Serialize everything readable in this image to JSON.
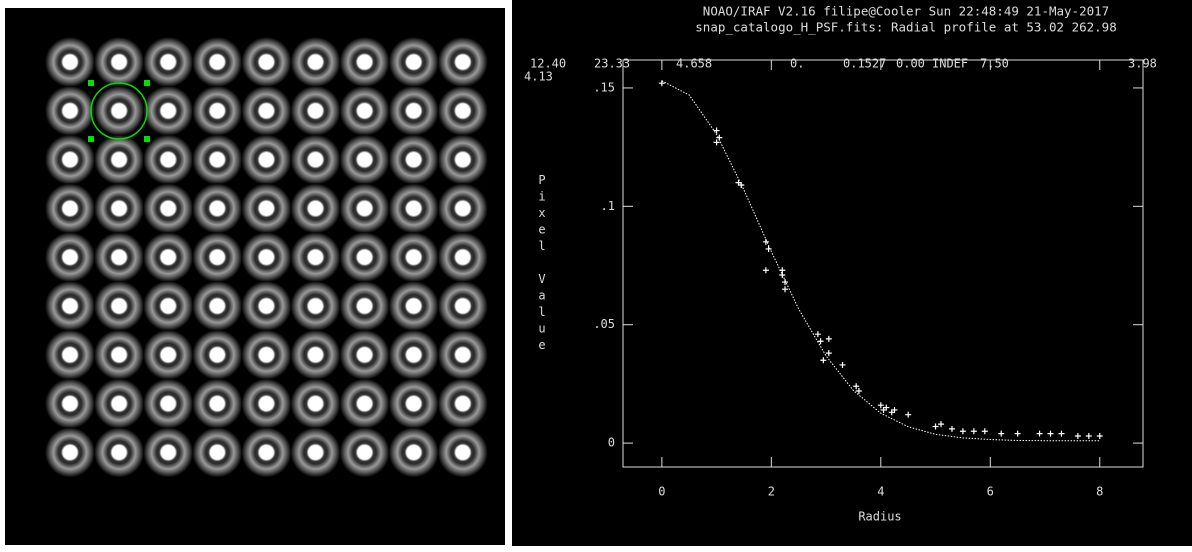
{
  "header": {
    "line1": "NOAO/IRAF V2.16 filipe@Cooler Sun 22:48:49 21-May-2017",
    "line2": "snap_catalogo_H_PSF.fits: Radial profile at 53.02 262.98"
  },
  "stats": {
    "row1": [
      "12.40",
      "23.33",
      "4.658",
      "0.",
      "0.1527",
      "0.00",
      "INDEF",
      "7.50",
      "3.98"
    ],
    "row2": [
      "4.13"
    ]
  },
  "chart_data": {
    "type": "scatter",
    "x_label": "Radius",
    "y_label": "Pixel Value",
    "xlim": [
      -0.71,
      8.79
    ],
    "ylim": [
      -0.0101,
      0.1618
    ],
    "xticks": [
      0,
      2,
      4,
      6,
      8
    ],
    "yticks": [
      0,
      {
        "value": 0.05,
        "label": ".05"
      },
      {
        "value": 0.1,
        "label": ".1"
      },
      {
        "value": 0.15,
        "label": ".15"
      }
    ],
    "series": [
      {
        "type": "scatter",
        "color": "#ffffff",
        "x": [
          0,
          1,
          1,
          1.05,
          1.4,
          1.45,
          1.9,
          1.95,
          1.9,
          2.2,
          2.25,
          2.25,
          2.2,
          2.85,
          2.9,
          3.05,
          3.05,
          2.95,
          3.3,
          3.55,
          3.6,
          4.0,
          4.05,
          4.1,
          4.2,
          4.25,
          4.5,
          5.0,
          5.1,
          5.3,
          5.5,
          5.7,
          5.9,
          6.2,
          6.5,
          6.9,
          7.1,
          7.3,
          7.6,
          7.8,
          8.0
        ],
        "values": [
          0.152,
          0.132,
          0.127,
          0.129,
          0.11,
          0.109,
          0.085,
          0.082,
          0.073,
          0.073,
          0.068,
          0.065,
          0.071,
          0.046,
          0.043,
          0.044,
          0.038,
          0.035,
          0.033,
          0.024,
          0.022,
          0.016,
          0.014,
          0.015,
          0.013,
          0.014,
          0.012,
          0.007,
          0.008,
          0.006,
          0.005,
          0.005,
          0.005,
          0.004,
          0.004,
          0.004,
          0.004,
          0.004,
          0.003,
          0.003,
          0.003
        ]
      },
      {
        "type": "line",
        "color": "#ffffff",
        "x": [
          0,
          0.5,
          1,
          1.5,
          2,
          2.5,
          3,
          3.5,
          4,
          4.5,
          5,
          5.5,
          6,
          6.5,
          7,
          7.5,
          8
        ],
        "values": [
          0.153,
          0.147,
          0.1304,
          0.1069,
          0.0809,
          0.0566,
          0.0368,
          0.0222,
          0.0126,
          0.0069,
          0.0037,
          0.0022,
          0.0015,
          0.0011,
          0.001,
          0.001,
          0.001
        ]
      }
    ]
  }
}
